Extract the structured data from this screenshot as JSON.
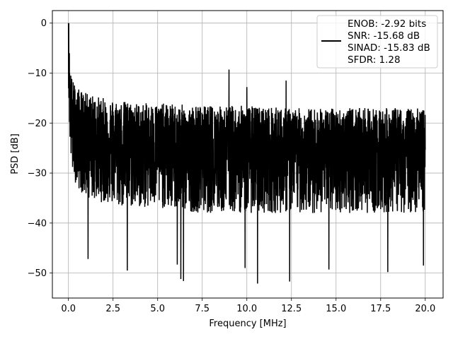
{
  "chart_data": {
    "type": "line",
    "title": "",
    "xlabel": "Frequency [MHz]",
    "ylabel": "PSD [dB]",
    "xlim": [
      -0.9,
      21.0
    ],
    "ylim": [
      -55.0,
      2.5
    ],
    "xticks": [
      0.0,
      2.5,
      5.0,
      7.5,
      10.0,
      12.5,
      15.0,
      17.5,
      20.0
    ],
    "xtick_labels": [
      "0.0",
      "2.5",
      "5.0",
      "7.5",
      "10.0",
      "12.5",
      "15.0",
      "17.5",
      "20.0"
    ],
    "yticks": [
      0,
      -10,
      -20,
      -30,
      -40,
      -50
    ],
    "ytick_labels": [
      "0",
      "−10",
      "−20",
      "−30",
      "−40",
      "−50"
    ],
    "grid": true,
    "legend_position": "top-right",
    "legend_entries": [
      "ENOB: -2.92 bits",
      "SNR: -15.68 dB",
      "SINAD: -15.83 dB",
      "SFDR: 1.28"
    ],
    "series_color": "#000000",
    "series": [
      {
        "name": "",
        "x_range_mhz": [
          0.0,
          20.0
        ],
        "envelope_x": [
          0.0,
          0.05,
          0.1,
          0.2,
          0.5,
          1.0,
          2.0,
          3.0,
          4.0,
          5.0,
          7.5,
          10.0,
          12.5,
          15.0,
          17.5,
          20.0
        ],
        "envelope_upper": [
          0.0,
          -4.0,
          -8.5,
          -11.0,
          -13.0,
          -14.0,
          -15.0,
          -15.5,
          -16.0,
          -16.0,
          -16.5,
          -16.5,
          -17.0,
          -17.0,
          -17.0,
          -17.0
        ],
        "envelope_mean": [
          -5.0,
          -12.0,
          -18.0,
          -20.0,
          -21.0,
          -22.0,
          -23.0,
          -23.5,
          -24.0,
          -24.5,
          -25.0,
          -25.0,
          -25.0,
          -25.0,
          -25.0,
          -25.0
        ],
        "envelope_lower": [
          -12.0,
          -20.0,
          -25.0,
          -30.0,
          -33.0,
          -35.0,
          -36.0,
          -37.0,
          -37.0,
          -37.0,
          -38.0,
          -38.0,
          -38.0,
          -38.0,
          -38.0,
          -38.0
        ],
        "notable_dips": [
          {
            "x": 1.1,
            "y": -47.2
          },
          {
            "x": 3.3,
            "y": -49.5
          },
          {
            "x": 6.1,
            "y": -48.3
          },
          {
            "x": 6.3,
            "y": -51.2
          },
          {
            "x": 6.45,
            "y": -51.6
          },
          {
            "x": 9.9,
            "y": -49.0
          },
          {
            "x": 10.6,
            "y": -52.1
          },
          {
            "x": 12.4,
            "y": -51.7
          },
          {
            "x": 14.6,
            "y": -49.3
          },
          {
            "x": 17.9,
            "y": -49.8
          },
          {
            "x": 19.9,
            "y": -48.5
          }
        ],
        "notable_peaks": [
          {
            "x": 0.02,
            "y": 0.0
          },
          {
            "x": 9.0,
            "y": -9.3
          },
          {
            "x": 10.0,
            "y": -12.8
          },
          {
            "x": 12.2,
            "y": -11.5
          }
        ]
      }
    ]
  }
}
